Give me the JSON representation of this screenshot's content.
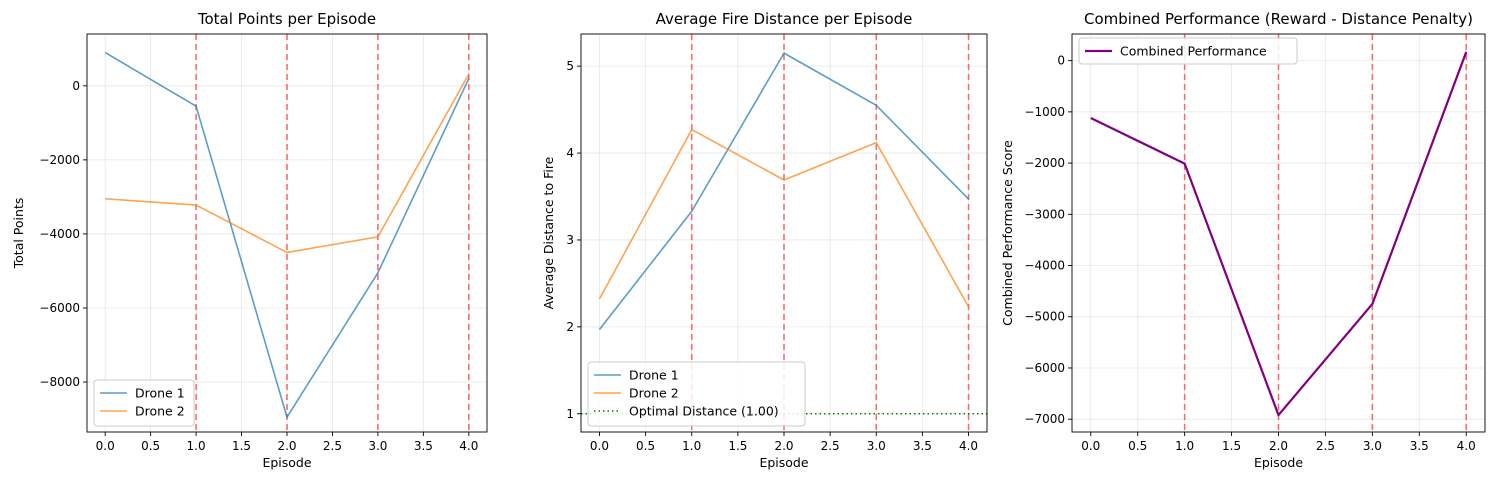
{
  "colors": {
    "drone1": "#1f77b4",
    "drone2": "#ff7f0e",
    "combined": "#800080",
    "episode_marker": "#ff0000",
    "optimal": "#008000",
    "grid": "#b0b0b0"
  },
  "chart_data": [
    {
      "type": "line",
      "title": "Total Points per Episode",
      "xlabel": "Episode",
      "ylabel": "Total Points",
      "x": [
        0,
        1,
        2,
        3,
        4
      ],
      "xlim": [
        -0.2,
        4.2
      ],
      "ylim": [
        -9350,
        1400
      ],
      "xticks": [
        0,
        0.5,
        1,
        1.5,
        2,
        2.5,
        3,
        3.5,
        4
      ],
      "xtick_labels": [
        "0.0",
        "0.5",
        "1.0",
        "1.5",
        "2.0",
        "2.5",
        "3.0",
        "3.5",
        "4.0"
      ],
      "yticks": [
        -8000,
        -6000,
        -4000,
        -2000,
        0
      ],
      "ytick_labels": [
        "−8000",
        "−6000",
        "−4000",
        "−2000",
        "0"
      ],
      "vlines": [
        1,
        2,
        3,
        4
      ],
      "grid": true,
      "legend_position": "lower-left",
      "series": [
        {
          "name": "Drone 1",
          "color_key": "drone1",
          "values": [
            900,
            -550,
            -8950,
            -5050,
            200
          ]
        },
        {
          "name": "Drone 2",
          "color_key": "drone2",
          "values": [
            -3050,
            -3220,
            -4500,
            -4080,
            320
          ]
        }
      ]
    },
    {
      "type": "line",
      "title": "Average Fire Distance per Episode",
      "xlabel": "Episode",
      "ylabel": "Average Distance to Fire",
      "x": [
        0,
        1,
        2,
        3,
        4
      ],
      "xlim": [
        -0.2,
        4.2
      ],
      "ylim": [
        0.79,
        5.37
      ],
      "xticks": [
        0,
        0.5,
        1,
        1.5,
        2,
        2.5,
        3,
        3.5,
        4
      ],
      "xtick_labels": [
        "0.0",
        "0.5",
        "1.0",
        "1.5",
        "2.0",
        "2.5",
        "3.0",
        "3.5",
        "4.0"
      ],
      "yticks": [
        1,
        2,
        3,
        4,
        5
      ],
      "ytick_labels": [
        "1",
        "2",
        "3",
        "4",
        "5"
      ],
      "vlines": [
        1,
        2,
        3,
        4
      ],
      "hline": {
        "name": "Optimal Distance (1.00)",
        "value": 1.0,
        "color_key": "optimal"
      },
      "grid": true,
      "legend_position": "lower-left",
      "series": [
        {
          "name": "Drone 1",
          "color_key": "drone1",
          "values": [
            1.97,
            3.33,
            5.15,
            4.55,
            3.47
          ]
        },
        {
          "name": "Drone 2",
          "color_key": "drone2",
          "values": [
            2.32,
            4.27,
            3.69,
            4.12,
            2.23
          ]
        }
      ]
    },
    {
      "type": "line",
      "title": "Combined Performance (Reward - Distance Penalty)",
      "xlabel": "Episode",
      "ylabel": "Combined Performance Score",
      "x": [
        0,
        1,
        2,
        3,
        4
      ],
      "xlim": [
        -0.2,
        4.2
      ],
      "ylim": [
        -7250,
        520
      ],
      "xticks": [
        0,
        0.5,
        1,
        1.5,
        2,
        2.5,
        3,
        3.5,
        4
      ],
      "xtick_labels": [
        "0.0",
        "0.5",
        "1.0",
        "1.5",
        "2.0",
        "2.5",
        "3.0",
        "3.5",
        "4.0"
      ],
      "yticks": [
        -7000,
        -6000,
        -5000,
        -4000,
        -3000,
        -2000,
        -1000,
        0
      ],
      "ytick_labels": [
        "−7000",
        "−6000",
        "−5000",
        "−4000",
        "−3000",
        "−2000",
        "−1000",
        "0"
      ],
      "vlines": [
        1,
        2,
        3,
        4
      ],
      "grid": true,
      "legend_position": "upper-left",
      "series": [
        {
          "name": "Combined Performance",
          "color_key": "combined",
          "values": [
            -1120,
            -2010,
            -6920,
            -4750,
            170
          ]
        }
      ]
    }
  ]
}
